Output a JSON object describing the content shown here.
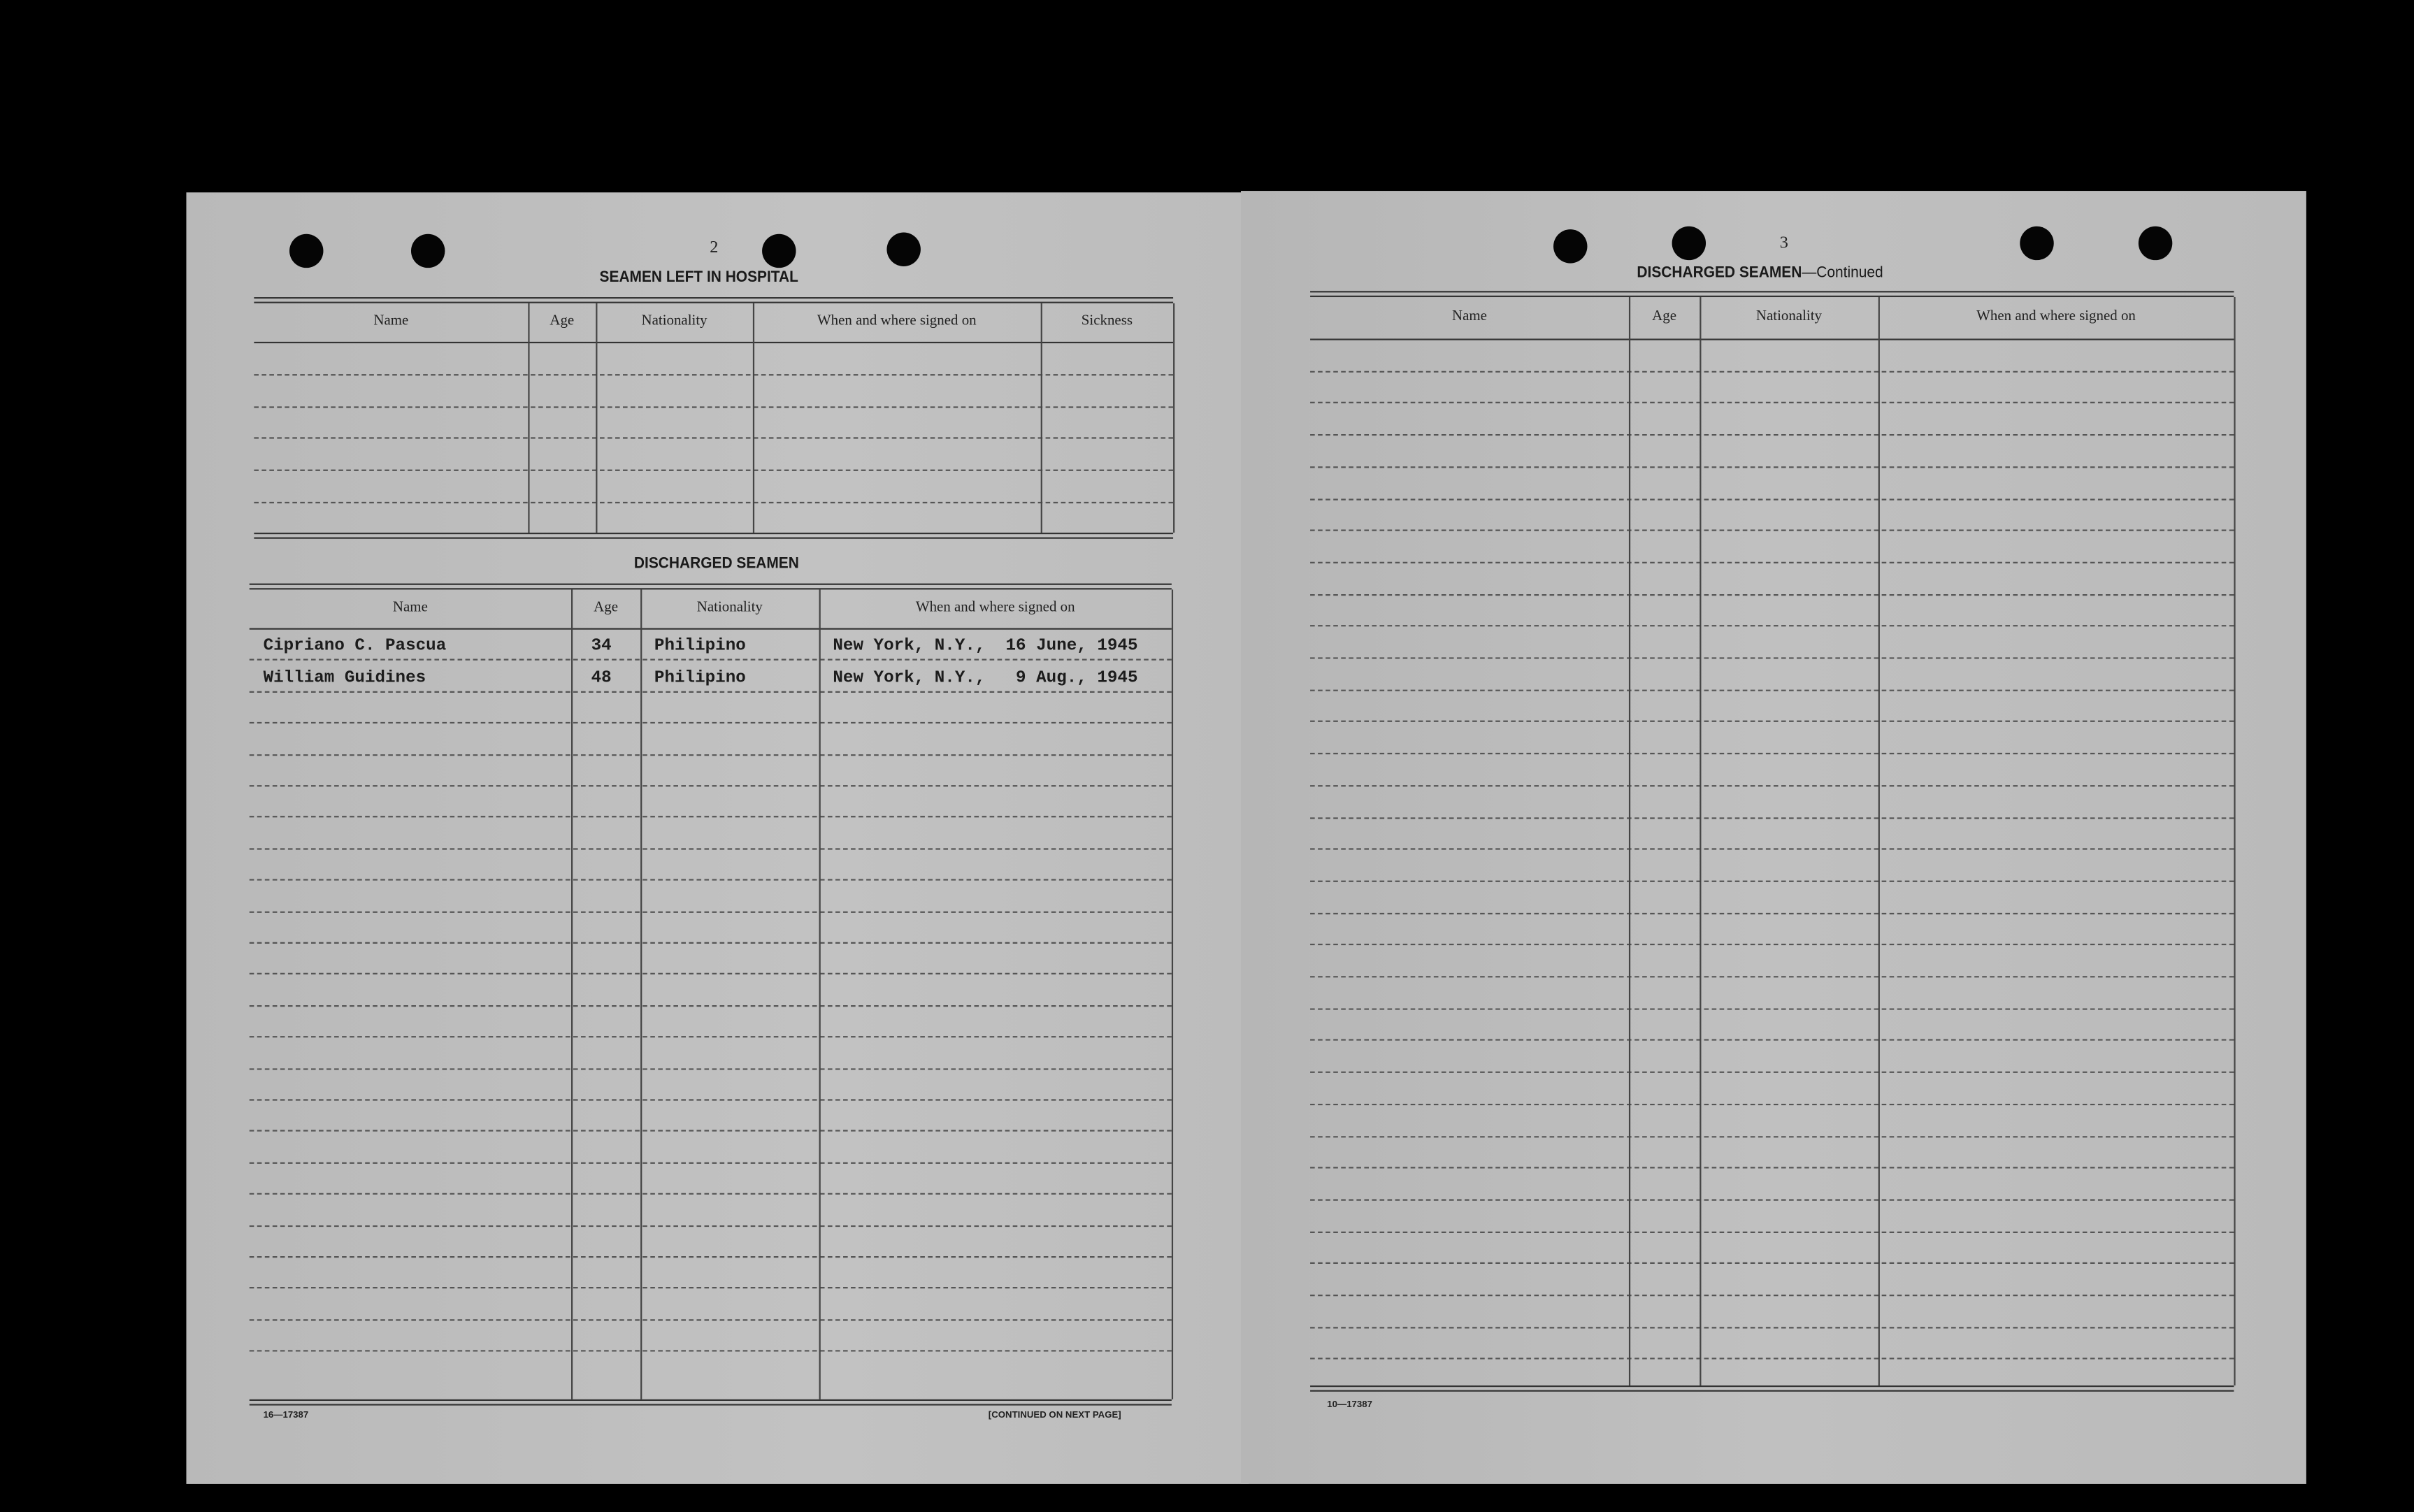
{
  "left_page": {
    "page_number": "2",
    "hospital": {
      "title": "SEAMEN LEFT IN HOSPITAL",
      "columns": [
        "Name",
        "Age",
        "Nationality",
        "When and where signed on",
        "Sickness"
      ],
      "rows": []
    },
    "discharged": {
      "title": "DISCHARGED SEAMEN",
      "columns": [
        "Name",
        "Age",
        "Nationality",
        "When and where signed on"
      ],
      "rows": [
        {
          "name": "Cipriano C. Pascua",
          "age": "34",
          "nationality": "Philipino",
          "signed_on": "New York, N.Y.,  16 June, 1945"
        },
        {
          "name": "William Guidines",
          "age": "48",
          "nationality": "Philipino",
          "signed_on": "New York, N.Y.,   9 Aug., 1945"
        }
      ]
    },
    "form_number": "16—17387",
    "continued_note": "[CONTINUED ON NEXT PAGE]"
  },
  "right_page": {
    "page_number": "3",
    "title": "DISCHARGED SEAMEN",
    "title_suffix": "—Continued",
    "columns": [
      "Name",
      "Age",
      "Nationality",
      "When and where signed on"
    ],
    "rows": [],
    "form_number": "10—17387"
  }
}
